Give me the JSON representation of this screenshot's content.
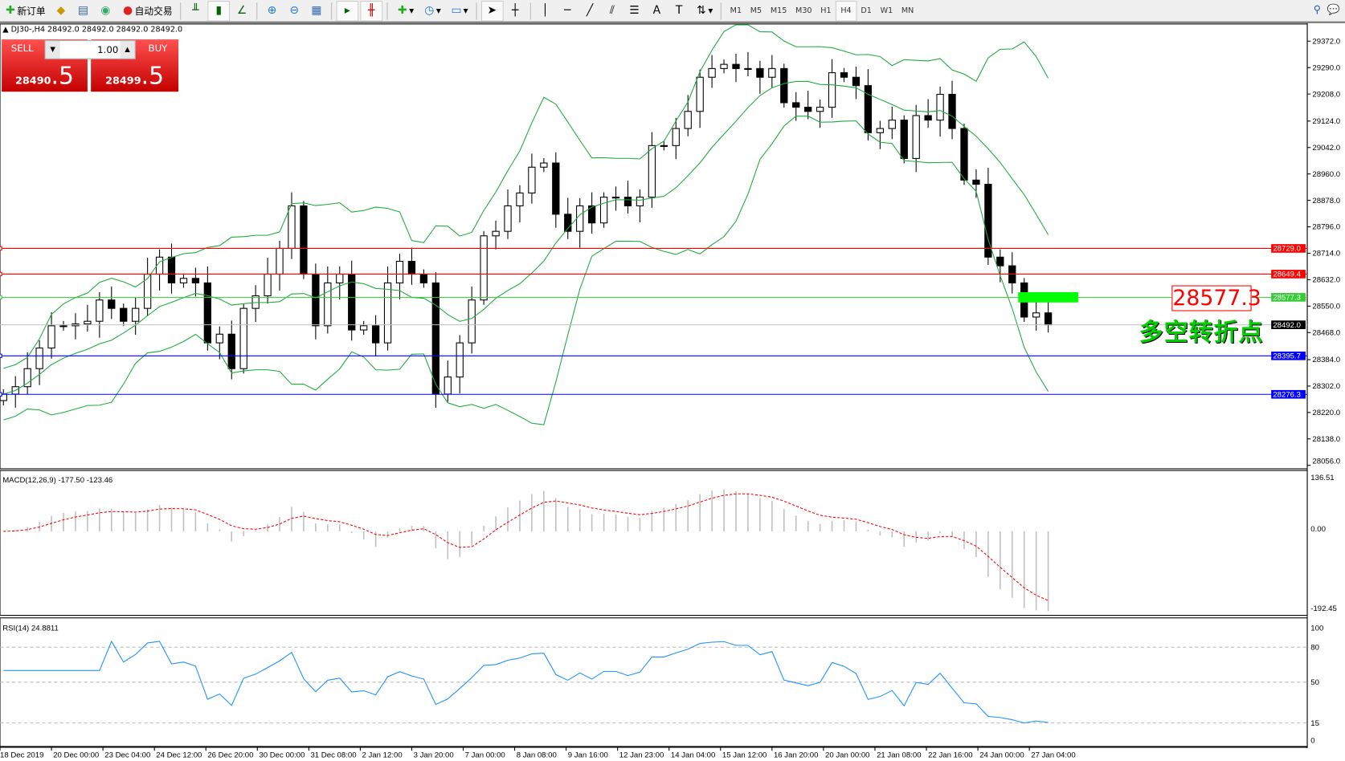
{
  "toolbar": {
    "new_order": "新订单",
    "auto_trading": "自动交易",
    "timeframes": [
      "M1",
      "M5",
      "M15",
      "M30",
      "H1",
      "H4",
      "D1",
      "W1",
      "MN"
    ],
    "active_timeframe": "H4"
  },
  "chart_header": {
    "symbol_line": "DJ30-,H4  28492.0 28492.0 28492.0 28492.0"
  },
  "trade_panel": {
    "sell_label": "SELL",
    "buy_label": "BUY",
    "lot": "1.00",
    "sell_big": "28490",
    "sell_small": ".5",
    "buy_big": "28499",
    "buy_small": ".5"
  },
  "annotations": {
    "price_box": "28577.3",
    "text": "多空转折点"
  },
  "colors": {
    "bollinger": "#1faa3c",
    "support": "#0000ff",
    "resistance": "#ff0000",
    "pivot": "#33cc33",
    "macd_signal": "#ff0000",
    "macd_hist": "#c0c0c0",
    "rsi": "#1e90ff",
    "pivot_zone": "#00ff00"
  },
  "chart_data": [
    {
      "type": "candlestick",
      "title": "DJ30-,H4",
      "ylim": [
        28056.0,
        29372.0
      ],
      "price_ticks": [
        "29372.0",
        "29290.0",
        "29208.0",
        "29124.0",
        "29042.0",
        "28960.0",
        "28878.0",
        "28796.0",
        "28714.0",
        "28632.0",
        "28550.0",
        "28468.0",
        "28384.0",
        "28302.0",
        "28220.0",
        "28138.0",
        "28056.0"
      ],
      "closes": [
        28277,
        28300,
        28356,
        28420,
        28489,
        28489,
        28495,
        28503,
        28569,
        28543,
        28503,
        28543,
        28649,
        28702,
        28622,
        28636,
        28622,
        28436,
        28463,
        28356,
        28543,
        28582,
        28649,
        28729,
        28861,
        28649,
        28489,
        28622,
        28649,
        28476,
        28489,
        28436,
        28622,
        28689,
        28649,
        28622,
        28277,
        28330,
        28436,
        28569,
        28768,
        28782,
        28861,
        28901,
        28981,
        28994,
        28835,
        28782,
        28861,
        28808,
        28888,
        28888,
        28861,
        28888,
        29048,
        29048,
        29101,
        29154,
        29260,
        29287,
        29300,
        29287,
        29287,
        29260,
        29287,
        29181,
        29167,
        29154,
        29167,
        29274,
        29260,
        29234,
        29088,
        29101,
        29127,
        29008,
        29141,
        29127,
        29207,
        29101,
        28941,
        28928,
        28702,
        28675,
        28622,
        28516,
        28529,
        28492
      ],
      "indicators": [
        "Bollinger Bands"
      ],
      "hlines": [
        {
          "value": "28729.0",
          "color": "#ff0000"
        },
        {
          "value": "28649.4",
          "color": "#ff0000"
        },
        {
          "value": "28577.3",
          "color": "#33cc33"
        },
        {
          "value": "28492.0",
          "color": "#000000",
          "current": true
        },
        {
          "value": "28395.7",
          "color": "#0000ff"
        },
        {
          "value": "28276.3",
          "color": "#0000ff"
        }
      ],
      "time_labels": [
        "18 Dec 2019",
        "20 Dec 00:00",
        "23 Dec 04:00",
        "24 Dec 12:00",
        "26 Dec 20:00",
        "30 Dec 00:00",
        "31 Dec 08:00",
        "2 Jan 12:00",
        "3 Jan 20:00",
        "7 Jan 00:00",
        "8 Jan 08:00",
        "9 Jan 16:00",
        "12 Jan 23:00",
        "14 Jan 04:00",
        "15 Jan 12:00",
        "16 Jan 20:00",
        "20 Jan 00:00",
        "21 Jan 08:00",
        "22 Jan 16:00",
        "24 Jan 00:00",
        "27 Jan 04:00"
      ]
    },
    {
      "type": "bar",
      "title": "MACD(12,26,9) -177.50 -123.46",
      "ylim": [
        -192.45,
        136.51
      ],
      "ticks": [
        "136.51",
        "0.00",
        "-192.45"
      ]
    },
    {
      "type": "line",
      "title": "RSI(14) 24.8811",
      "ylim": [
        0,
        100
      ],
      "ticks": [
        "100",
        "80",
        "50",
        "15",
        "0"
      ],
      "levels": [
        80,
        50,
        15
      ]
    }
  ]
}
